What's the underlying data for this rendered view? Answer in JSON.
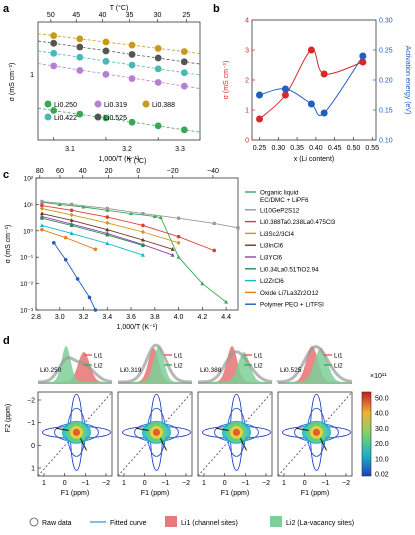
{
  "panels": {
    "a": {
      "letter": "a",
      "top_axis_label": "T (°C)",
      "top_ticks": [
        "50",
        "45",
        "40",
        "35",
        "30",
        "25"
      ],
      "ylabel": "σ (mS cm⁻¹)",
      "xlabel": "1,000/T (K⁻¹)",
      "xticks": [
        "3.1",
        "3.2",
        "3.3"
      ],
      "yticks": [
        "1"
      ]
    },
    "b": {
      "letter": "b",
      "ylabel_left": "σ (mS cm⁻¹)",
      "ylabel_right": "Activation energy (eV)",
      "xlabel": "x (Li content)",
      "xticks": [
        "0.25",
        "0.30",
        "0.35",
        "0.40",
        "0.45",
        "0.50",
        "0.55"
      ],
      "yticks_left": [
        "0",
        "1",
        "2",
        "3",
        "4"
      ],
      "yticks_right": [
        "0.10",
        "0.15",
        "0.20",
        "0.25",
        "0.30"
      ]
    },
    "c": {
      "letter": "c",
      "top_axis_label": "T (°C)",
      "top_ticks": [
        "80",
        "60",
        "40",
        "20",
        "0",
        "−20",
        "−40"
      ],
      "ylabel": "σ (mS cm⁻¹)",
      "xlabel": "1,000/T (K⁻¹)",
      "xticks": [
        "2.8",
        "3.0",
        "3.2",
        "3.4",
        "3.6",
        "3.8",
        "4.0",
        "4.2",
        "4.4"
      ],
      "yticks": [
        "10²",
        "10¹",
        "10⁰",
        "10⁻¹",
        "10⁻²",
        "10⁻³"
      ]
    },
    "d": {
      "letter": "d",
      "ylabel": "F2 (ppm)",
      "xlabel": "F1 (ppm)",
      "xticks": [
        "1",
        "0",
        "−1",
        "−2"
      ],
      "yticks": [
        "−2",
        "−1",
        "0",
        "1"
      ],
      "colorbar_exp": "×10¹¹",
      "colorbar_ticks": [
        "50.0",
        "40.0",
        "30.0",
        "20.0",
        "10.0",
        "0.02"
      ]
    }
  },
  "legend_a": [
    {
      "label": "Li0.250",
      "color": "#3aa757"
    },
    {
      "label": "Li0.319",
      "color": "#b57fd6"
    },
    {
      "label": "Li0.388",
      "color": "#c99a1a"
    },
    {
      "label": "Li0.422",
      "color": "#4bb8b5"
    },
    {
      "label": "Li0.525",
      "color": "#555555"
    }
  ],
  "legend_c": [
    {
      "label": "Organic liquid EC/DMC + LiPF6",
      "color": "#3aa757"
    },
    {
      "label": "Li10GeP2S12",
      "color": "#999999"
    },
    {
      "label": "Li0.388Ta0.238La0.475Cl3",
      "color": "#e03a3a"
    },
    {
      "label": "Li3Sc2/3Cl4",
      "color": "#c99a1a"
    },
    {
      "label": "Li3InCl6",
      "color": "#6b3a1f"
    },
    {
      "label": "Li3YCl6",
      "color": "#8e44ad"
    },
    {
      "label": "Li0.34La0.51TiO2.94",
      "color": "#2e8b57"
    },
    {
      "label": "Li2ZrCl6",
      "color": "#17b5c8"
    },
    {
      "label": "Oxide Li7La3Zr2O12",
      "color": "#e67e22"
    },
    {
      "label": "Polymer PEO + LiTFSI",
      "color": "#1f5fbf"
    }
  ],
  "legend_d": {
    "li1": "Li1",
    "li2": "Li2",
    "colors": {
      "li1": "#e05252",
      "li2": "#3aa757"
    }
  },
  "nmr_samples": [
    "Li0.250",
    "Li0.319",
    "Li0.388",
    "Li0.525"
  ],
  "bottom_legend": [
    {
      "label": "Raw data"
    },
    {
      "label": "Fitted curve"
    },
    {
      "label": "Li1 (channel sites)"
    },
    {
      "label": "Li2 (La-vacancy sites)"
    }
  ],
  "chart_data": [
    {
      "type": "scatter",
      "panel": "a",
      "xlabel": "1,000/T (K⁻¹)",
      "ylabel": "σ (mS cm⁻¹)",
      "y_scale": "log",
      "series": [
        {
          "name": "Li0.250",
          "x": [
            3.1,
            3.15,
            3.2,
            3.25,
            3.3,
            3.35
          ],
          "y": [
            0.72,
            0.67,
            0.62,
            0.57,
            0.53,
            0.49
          ]
        },
        {
          "name": "Li0.319",
          "x": [
            3.1,
            3.15,
            3.2,
            3.25,
            3.3,
            3.35
          ],
          "y": [
            1.75,
            1.6,
            1.48,
            1.36,
            1.26,
            1.17
          ]
        },
        {
          "name": "Li0.388",
          "x": [
            3.1,
            3.15,
            3.2,
            3.25,
            3.3,
            3.35
          ],
          "y": [
            3.2,
            3.0,
            2.82,
            2.65,
            2.48,
            2.33
          ]
        },
        {
          "name": "Li0.422",
          "x": [
            3.1,
            3.15,
            3.2,
            3.25,
            3.3,
            3.35
          ],
          "y": [
            2.25,
            2.08,
            1.92,
            1.78,
            1.65,
            1.53
          ]
        },
        {
          "name": "Li0.525",
          "x": [
            3.1,
            3.15,
            3.2,
            3.25,
            3.3,
            3.35
          ],
          "y": [
            2.75,
            2.55,
            2.36,
            2.2,
            2.05,
            1.9
          ]
        }
      ]
    },
    {
      "type": "line",
      "panel": "b",
      "xlabel": "x (Li content)",
      "x": [
        0.25,
        0.319,
        0.388,
        0.422,
        0.525
      ],
      "series": [
        {
          "name": "σ (mS cm⁻¹)",
          "axis": "left",
          "values": [
            0.7,
            1.5,
            3.0,
            2.2,
            2.6
          ]
        },
        {
          "name": "Activation energy (eV)",
          "axis": "right",
          "values": [
            0.175,
            0.185,
            0.16,
            0.145,
            0.24
          ]
        }
      ]
    },
    {
      "type": "line",
      "panel": "c",
      "xlabel": "1,000/T (K⁻¹)",
      "ylabel": "σ (mS cm⁻¹)",
      "y_scale": "log",
      "series": [
        {
          "name": "Organic liquid EC/DMC + LiPF6",
          "x": [
            2.85,
            3.0,
            3.2,
            3.4,
            3.6,
            3.8,
            3.85,
            4.0,
            4.2,
            4.4
          ],
          "y": [
            12,
            10,
            8,
            6,
            4.5,
            3.5,
            3.2,
            0.1,
            0.01,
            0.002
          ]
        },
        {
          "name": "Li10GeP2S12",
          "x": [
            2.85,
            3.1,
            3.4,
            3.7,
            4.0,
            4.3,
            4.5
          ],
          "y": [
            13,
            10,
            7,
            4.5,
            3,
            1.9,
            1.3
          ]
        },
        {
          "name": "Li0.388Ta0.238La0.475Cl3",
          "x": [
            2.85,
            3.1,
            3.4,
            3.7,
            4.0,
            4.3
          ],
          "y": [
            9,
            6,
            3.3,
            1.6,
            0.6,
            0.18
          ]
        },
        {
          "name": "Li3Sc2/3Cl4",
          "x": [
            2.85,
            3.1,
            3.4,
            3.7,
            4.0
          ],
          "y": [
            7,
            4,
            2,
            0.9,
            0.35
          ]
        },
        {
          "name": "Li3InCl6",
          "x": [
            2.85,
            3.1,
            3.4,
            3.7,
            3.95
          ],
          "y": [
            4.5,
            2.5,
            1.1,
            0.45,
            0.2
          ]
        },
        {
          "name": "Li3YCl6",
          "x": [
            2.85,
            3.1,
            3.4,
            3.7,
            3.95
          ],
          "y": [
            3.5,
            1.8,
            0.8,
            0.3,
            0.12
          ]
        },
        {
          "name": "Li0.34La0.51TiO2.94",
          "x": [
            2.85,
            3.1,
            3.4,
            3.7
          ],
          "y": [
            3,
            1.6,
            0.7,
            0.28
          ]
        },
        {
          "name": "Li2ZrCl6",
          "x": [
            2.85,
            3.1,
            3.4,
            3.7
          ],
          "y": [
            1.6,
            0.8,
            0.33,
            0.12
          ]
        },
        {
          "name": "Oxide Li7La3Zr2O12",
          "x": [
            2.85,
            3.05,
            3.3
          ],
          "y": [
            1.1,
            0.55,
            0.2
          ]
        },
        {
          "name": "Polymer PEO + LiTFSI",
          "x": [
            2.95,
            3.05,
            3.15,
            3.25,
            3.3
          ],
          "y": [
            0.35,
            0.08,
            0.015,
            0.003,
            0.001
          ]
        }
      ]
    }
  ]
}
